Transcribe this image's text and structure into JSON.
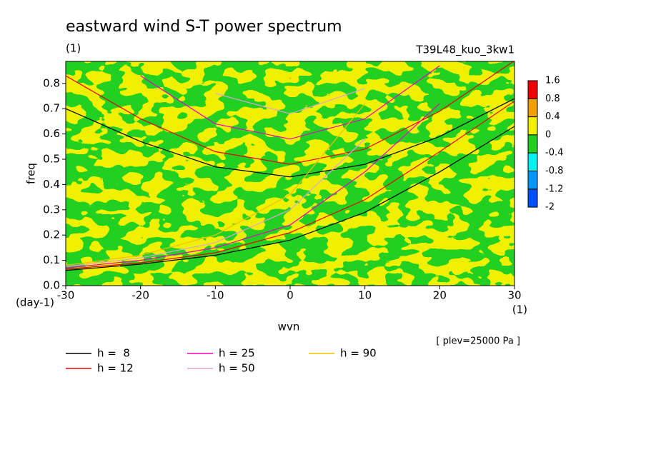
{
  "chart_data": {
    "type": "contour",
    "title": "eastward wind S-T power spectrum",
    "subtitle": "(1)",
    "run_label": "T39L48_kuo_3kw1",
    "ylabel": "freq",
    "yunit": "(day-1)",
    "xlabel": "wvn",
    "xunit": "(1)",
    "annotation": "[ plev=25000 Pa ]",
    "xlim": [
      -30,
      30
    ],
    "ylim": [
      0,
      0.887
    ],
    "xticks": [
      -30,
      -20,
      -10,
      0,
      10,
      20,
      30
    ],
    "yticks": [
      {
        "value": 0,
        "label": "0.0"
      },
      0.1,
      0.2,
      0.3,
      0.4,
      0.5,
      0.6,
      0.7,
      0.8
    ],
    "levels": [
      1.6,
      0.8,
      0.4,
      0,
      -0.4,
      -0.8,
      -1.2,
      -2
    ],
    "level_colors": [
      "#f00000",
      "#f0a000",
      "#f0f000",
      "#20d020",
      "#00f0f0",
      "#0096ff",
      "#0050ff"
    ],
    "x": [
      -30,
      -20,
      -10,
      0,
      10,
      20,
      30
    ],
    "series": [
      {
        "name": "h =  8",
        "color": "#000000",
        "upper": [
          0.7,
          0.57,
          0.47,
          0.43,
          0.48,
          0.59,
          0.74
        ],
        "lower": [
          0.06,
          0.085,
          0.12,
          0.18,
          0.29,
          0.45,
          0.63
        ]
      },
      {
        "name": "h = 12",
        "color": "#f00000",
        "upper": [
          0.83,
          0.66,
          0.53,
          0.48,
          0.54,
          0.69,
          0.89
        ],
        "lower": [
          0.065,
          0.09,
          0.13,
          0.21,
          0.34,
          0.53,
          0.73
        ]
      },
      {
        "name": "h = 25",
        "color": "#f000c0",
        "upper": [
          null,
          0.83,
          0.64,
          0.58,
          0.66,
          0.87,
          null
        ],
        "lower": [
          0.07,
          0.1,
          0.15,
          0.24,
          0.45,
          0.72,
          null
        ]
      },
      {
        "name": "h = 50",
        "color": "#e0a0e0",
        "upper": [
          null,
          null,
          0.76,
          0.68,
          0.78,
          null,
          null
        ],
        "lower": [
          0.075,
          0.11,
          0.17,
          0.3,
          0.58,
          null,
          null
        ]
      },
      {
        "name": "h = 90",
        "color": "#f0c000",
        "upper": [
          null,
          null,
          null,
          0.82,
          null,
          null,
          null
        ],
        "lower": [
          0.08,
          0.12,
          0.2,
          0.36,
          0.72,
          null,
          null
        ]
      }
    ]
  }
}
